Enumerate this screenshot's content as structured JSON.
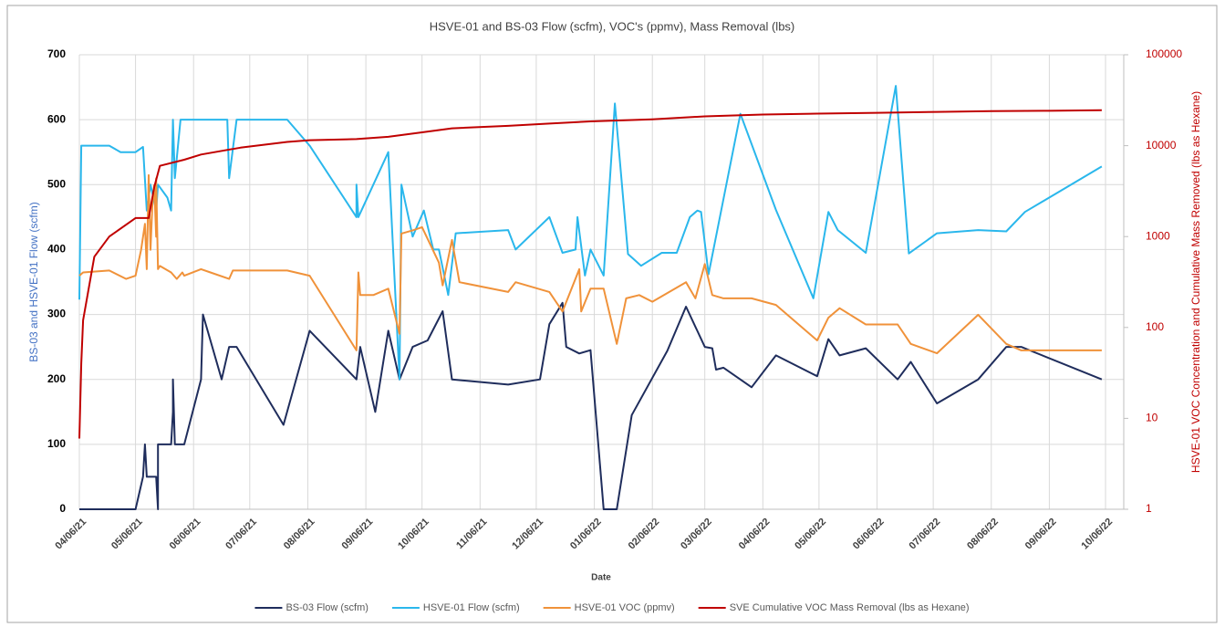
{
  "chart_data": {
    "type": "line",
    "title": "HSVE-01 and BS-03 Flow (scfm), VOC's (ppmv), Mass Removal (lbs)",
    "x_label": "Date",
    "y_label": "BS-03 and HSVE-01 Flow (scfm)",
    "y2_label": "HSVE-01 VOC Concentration and Cumulative Mass Removed (lbs as Hexane)",
    "xlim": [
      "04/06/21",
      "10/06/22"
    ],
    "xticks": [
      "04/06/21",
      "05/06/21",
      "06/06/21",
      "07/06/21",
      "08/06/21",
      "09/06/21",
      "10/06/21",
      "11/06/21",
      "12/06/21",
      "01/06/22",
      "02/06/22",
      "03/06/22",
      "04/06/22",
      "05/06/22",
      "06/06/22",
      "07/06/22",
      "08/06/22",
      "09/06/22",
      "10/06/22"
    ],
    "ylim": [
      0,
      700
    ],
    "yticks": [
      0,
      100,
      200,
      300,
      400,
      500,
      600,
      700
    ],
    "y2lim": [
      1,
      100000
    ],
    "y2ticks": [
      1,
      10,
      100,
      1000,
      10000,
      100000
    ],
    "y2_log": true,
    "grid": true,
    "legend": "bottom",
    "series": [
      {
        "name": "BS-03 Flow (scfm)",
        "color": "#1f2d5c",
        "axis": "y",
        "x": [
          "04/06/21",
          "05/06/21",
          "05/10/21",
          "05/11/21",
          "05/12/21",
          "05/13/21",
          "05/17/21",
          "05/18/21",
          "05/18/21",
          "05/25/21",
          "05/26/21",
          "05/26/21",
          "05/27/21",
          "06/01/21",
          "06/10/21",
          "06/11/21",
          "06/21/21",
          "06/25/21",
          "06/29/21",
          "07/24/21",
          "08/07/21",
          "09/01/21",
          "09/03/21",
          "09/11/21",
          "09/18/21",
          "09/24/21",
          "10/01/21",
          "10/09/21",
          "10/17/21",
          "10/22/21",
          "11/21/21",
          "12/08/21",
          "12/13/21",
          "12/20/21",
          "12/22/21",
          "12/29/21",
          "01/04/22",
          "01/11/22",
          "01/18/22",
          "01/26/22",
          "02/14/22",
          "02/24/22",
          "03/06/22",
          "03/10/22",
          "03/12/22",
          "03/16/22",
          "03/31/22",
          "04/13/22",
          "05/05/22",
          "05/11/22",
          "05/17/22",
          "05/31/22",
          "06/17/22",
          "06/24/22",
          "07/08/22",
          "07/30/22",
          "08/14/22",
          "08/22/22",
          "10/04/22"
        ],
        "values": [
          0,
          0,
          50,
          100,
          50,
          50,
          50,
          0,
          100,
          100,
          150,
          200,
          100,
          100,
          200,
          300,
          200,
          250,
          250,
          130,
          275,
          200,
          250,
          150,
          275,
          200,
          250,
          260,
          305,
          200,
          192,
          200,
          285,
          318,
          250,
          240,
          245,
          0,
          0,
          145,
          244,
          312,
          250,
          248,
          215,
          218,
          188,
          237,
          205,
          262,
          237,
          248,
          200,
          227,
          163,
          200,
          250,
          250,
          200
        ]
      },
      {
        "name": "HSVE-01 Flow (scfm)",
        "color": "#2ab7ec",
        "axis": "y",
        "x": [
          "04/06/21",
          "04/07/21",
          "04/22/21",
          "04/28/21",
          "05/06/21",
          "05/10/21",
          "05/12/21",
          "05/14/21",
          "05/17/21",
          "05/18/21",
          "05/23/21",
          "05/25/21",
          "05/26/21",
          "05/27/21",
          "05/30/21",
          "06/24/21",
          "06/25/21",
          "06/29/21",
          "07/26/21",
          "08/07/21",
          "09/01/21",
          "09/01/21",
          "09/02/21",
          "09/18/21",
          "09/24/21",
          "09/25/21",
          "10/01/21",
          "10/07/21",
          "10/12/21",
          "10/15/21",
          "10/20/21",
          "10/24/21",
          "11/21/21",
          "11/25/21",
          "12/13/21",
          "12/20/21",
          "12/27/21",
          "12/28/21",
          "01/01/22",
          "01/04/22",
          "01/11/22",
          "01/17/22",
          "01/24/22",
          "01/31/22",
          "02/11/22",
          "02/19/22",
          "02/26/22",
          "03/02/22",
          "03/04/22",
          "03/08/22",
          "03/25/22",
          "04/13/22",
          "05/03/22",
          "05/11/22",
          "05/16/22",
          "05/31/22",
          "06/16/22",
          "06/23/22",
          "07/08/22",
          "07/30/22",
          "08/14/22",
          "08/24/22",
          "10/04/22"
        ],
        "values": [
          323,
          560,
          560,
          550,
          550,
          558,
          460,
          500,
          460,
          500,
          480,
          460,
          600,
          510,
          600,
          600,
          510,
          600,
          600,
          560,
          450,
          500,
          450,
          550,
          200,
          500,
          420,
          460,
          400,
          400,
          330,
          425,
          430,
          400,
          450,
          395,
          400,
          450,
          360,
          400,
          360,
          625,
          393,
          375,
          395,
          395,
          450,
          460,
          458,
          362,
          609,
          461,
          325,
          458,
          430,
          395,
          652,
          394,
          425,
          430,
          428,
          458,
          528
        ]
      },
      {
        "name": "HSVE-01 VOC (ppmv)",
        "color": "#f0923a",
        "axis": "y2",
        "x": [
          "04/06/21",
          "04/08/21",
          "04/22/21",
          "05/01/21",
          "05/06/21",
          "05/09/21",
          "05/11/21",
          "05/12/21",
          "05/13/21",
          "05/14/21",
          "05/15/21",
          "05/16/21",
          "05/17/21",
          "05/17/21",
          "05/18/21",
          "05/19/21",
          "05/25/21",
          "05/28/21",
          "05/31/21",
          "06/01/21",
          "06/10/21",
          "06/15/21",
          "06/25/21",
          "06/27/21",
          "07/26/21",
          "08/07/21",
          "09/01/21",
          "09/02/21",
          "09/03/21",
          "09/10/21",
          "09/18/21",
          "09/24/21",
          "09/25/21",
          "10/01/21",
          "10/06/21",
          "10/15/21",
          "10/17/21",
          "10/22/21",
          "10/26/21",
          "11/21/21",
          "11/25/21",
          "12/13/21",
          "12/20/21",
          "12/29/21",
          "12/30/21",
          "01/04/22",
          "01/11/22",
          "01/18/22",
          "01/23/22",
          "01/30/22",
          "02/06/22",
          "02/24/22",
          "03/01/22",
          "03/06/22",
          "03/10/22",
          "03/16/22",
          "03/31/22",
          "04/13/22",
          "05/05/22",
          "05/11/22",
          "05/17/22",
          "05/31/22",
          "06/17/22",
          "06/24/22",
          "07/08/22",
          "07/30/22",
          "08/14/22",
          "08/22/22",
          "10/04/22"
        ],
        "values": [
          371,
          403,
          423,
          342,
          371,
          716,
          1380,
          438,
          4740,
          716,
          2260,
          3700,
          995,
          4370,
          438,
          475,
          403,
          342,
          403,
          371,
          438,
          403,
          342,
          423,
          423,
          371,
          56,
          403,
          227,
          227,
          267,
          85,
          1080,
          1170,
          1270,
          516,
          290,
          917,
          315,
          246,
          315,
          246,
          150,
          438,
          150,
          267,
          267,
          66,
          209,
          227,
          192,
          315,
          209,
          499,
          227,
          209,
          209,
          177,
          72,
          128,
          163,
          108,
          108,
          66,
          52,
          138,
          66,
          56,
          56
        ]
      },
      {
        "name": "SVE Cumulative VOC Mass Removal  (lbs as Hexane)",
        "color": "#c00000",
        "axis": "y2",
        "x": [
          "04/06/21",
          "04/07/21",
          "04/08/21",
          "04/14/21",
          "04/22/21",
          "05/06/21",
          "05/13/21",
          "05/16/21",
          "05/19/21",
          "06/01/21",
          "06/10/21",
          "07/01/21",
          "07/26/21",
          "08/07/21",
          "09/01/21",
          "09/18/21",
          "10/06/21",
          "10/22/21",
          "11/21/21",
          "12/13/21",
          "01/04/22",
          "02/06/22",
          "03/06/22",
          "04/06/22",
          "05/05/22",
          "06/06/22",
          "07/08/22",
          "08/06/22",
          "09/06/22",
          "10/04/22"
        ],
        "values": [
          6,
          40,
          120,
          600,
          1000,
          1600,
          1600,
          3500,
          6000,
          7000,
          8000,
          9500,
          11000,
          11500,
          11800,
          12500,
          14000,
          15500,
          16500,
          17500,
          18500,
          19500,
          21000,
          22000,
          22500,
          23000,
          23500,
          24000,
          24200,
          24500
        ]
      }
    ]
  }
}
